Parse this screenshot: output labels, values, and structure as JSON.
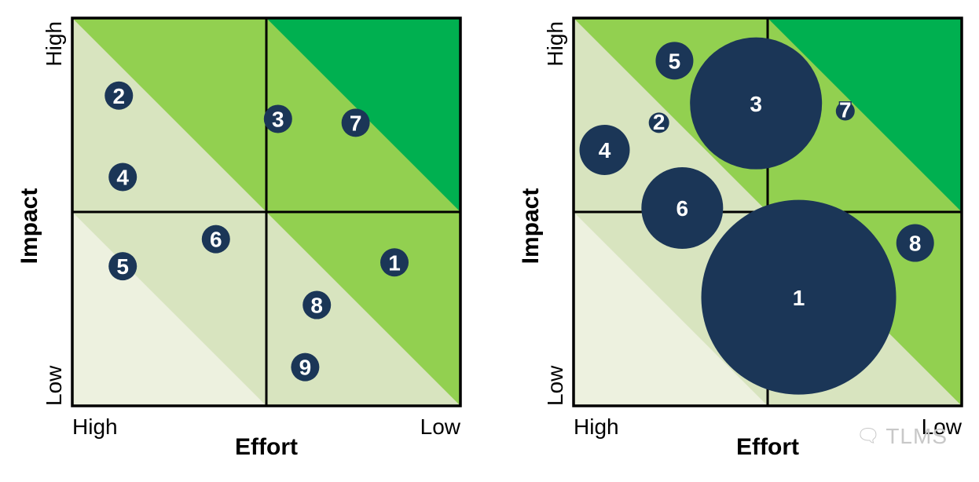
{
  "chart_data": [
    {
      "type": "scatter",
      "title": "",
      "xlabel": "Effort",
      "ylabel": "Impact",
      "x_ticks": [
        "High",
        "Low"
      ],
      "y_ticks": [
        "High",
        "Low"
      ],
      "x_direction": "High effort on left, Low effort on right",
      "grid": "2x2 quadrants",
      "zones": [
        "lightest (bottom-left)",
        "light",
        "medium green",
        "dark green (top-right)"
      ],
      "points": [
        {
          "label": "1",
          "effort": 0.83,
          "impact": 0.37,
          "size": 1
        },
        {
          "label": "2",
          "effort": 0.12,
          "impact": 0.8,
          "size": 1
        },
        {
          "label": "3",
          "effort": 0.53,
          "impact": 0.74,
          "size": 1
        },
        {
          "label": "4",
          "effort": 0.13,
          "impact": 0.59,
          "size": 1
        },
        {
          "label": "5",
          "effort": 0.13,
          "impact": 0.36,
          "size": 1
        },
        {
          "label": "6",
          "effort": 0.37,
          "impact": 0.43,
          "size": 1
        },
        {
          "label": "7",
          "effort": 0.73,
          "impact": 0.73,
          "size": 1
        },
        {
          "label": "8",
          "effort": 0.63,
          "impact": 0.26,
          "size": 1
        },
        {
          "label": "9",
          "effort": 0.6,
          "impact": 0.1,
          "size": 1
        }
      ]
    },
    {
      "type": "scatter",
      "title": "",
      "xlabel": "Effort",
      "ylabel": "Impact",
      "x_ticks": [
        "High",
        "Low"
      ],
      "y_ticks": [
        "High",
        "Low"
      ],
      "x_direction": "High effort on left, Low effort on right",
      "grid": "2x2 quadrants",
      "encoding": "bubble size varies",
      "points": [
        {
          "label": "1",
          "effort": 0.58,
          "impact": 0.28,
          "size": 124
        },
        {
          "label": "2",
          "effort": 0.22,
          "impact": 0.73,
          "size": 13
        },
        {
          "label": "3",
          "effort": 0.47,
          "impact": 0.78,
          "size": 84
        },
        {
          "label": "4",
          "effort": 0.08,
          "impact": 0.66,
          "size": 32
        },
        {
          "label": "5",
          "effort": 0.26,
          "impact": 0.89,
          "size": 24
        },
        {
          "label": "6",
          "effort": 0.28,
          "impact": 0.51,
          "size": 52
        },
        {
          "label": "7",
          "effort": 0.7,
          "impact": 0.76,
          "size": 12
        },
        {
          "label": "8",
          "effort": 0.88,
          "impact": 0.42,
          "size": 24
        }
      ]
    }
  ],
  "colors": {
    "zone_lightest": "#edf1df",
    "zone_light": "#d8e4bf",
    "zone_medium": "#92d050",
    "zone_dark": "#00b050",
    "bubble": "#1b3657",
    "bubble_text": "#ffffff",
    "lines": "#000000"
  },
  "watermark": "TLMS"
}
